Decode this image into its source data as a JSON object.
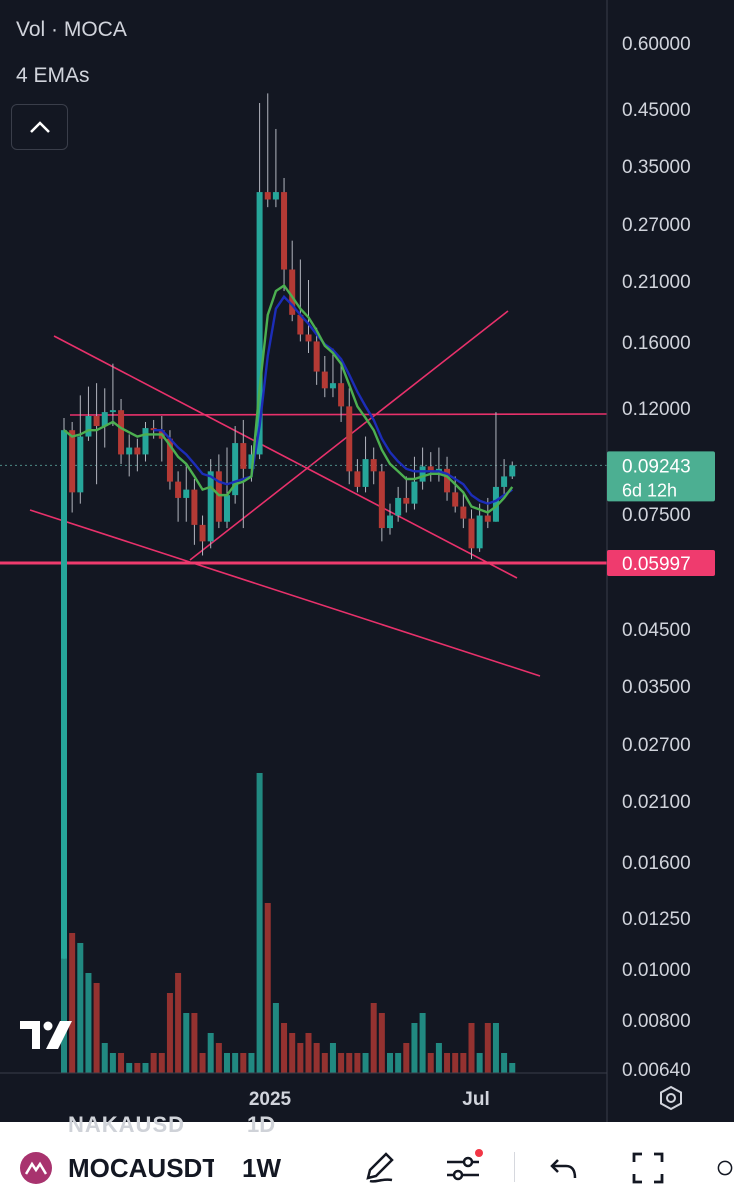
{
  "legend": {
    "volume_label": "Vol · MOCA",
    "ema_label": "4 EMAs"
  },
  "colors": {
    "up": "#26a69a",
    "down": "#b53a35",
    "ema_fast": "#4caf50",
    "ema_slow": "#1c2db8",
    "trendline": "#e8316b",
    "support": "#ef3b6e"
  },
  "chart_data": {
    "type": "candlestick",
    "price_axis": {
      "scale": "log",
      "range": [
        0.0062,
        0.64
      ],
      "ticks": [
        "0.60000",
        "0.45000",
        "0.35000",
        "0.27000",
        "0.21000",
        "0.16000",
        "0.12000",
        "0.07500",
        "0.04500",
        "0.03500",
        "0.02700",
        "0.02100",
        "0.01600",
        "0.01250",
        "0.01000",
        "0.00800",
        "0.00640"
      ]
    },
    "time_axis": {
      "labels": [
        "2025",
        "Jul"
      ]
    },
    "last_price": {
      "value": "0.09243",
      "countdown": "6d 12h"
    },
    "marked_price": {
      "value": "0.05997"
    },
    "candles": [
      [
        0.0104,
        0.108,
        0.114,
        0.0104
      ],
      [
        0.108,
        0.082,
        0.112,
        0.075
      ],
      [
        0.082,
        0.105,
        0.126,
        0.078
      ],
      [
        0.105,
        0.115,
        0.131,
        0.103
      ],
      [
        0.115,
        0.11,
        0.133,
        0.085
      ],
      [
        0.11,
        0.117,
        0.13,
        0.1
      ],
      [
        0.117,
        0.118,
        0.145,
        0.11
      ],
      [
        0.118,
        0.097,
        0.124,
        0.093
      ],
      [
        0.097,
        0.1,
        0.106,
        0.088
      ],
      [
        0.1,
        0.097,
        0.104,
        0.09
      ],
      [
        0.097,
        0.109,
        0.112,
        0.094
      ],
      [
        0.109,
        0.108,
        0.113,
        0.104
      ],
      [
        0.108,
        0.104,
        0.115,
        0.094
      ],
      [
        0.104,
        0.086,
        0.108,
        0.083
      ],
      [
        0.086,
        0.08,
        0.09,
        0.072
      ],
      [
        0.08,
        0.083,
        0.092,
        0.072
      ],
      [
        0.083,
        0.071,
        0.087,
        0.065
      ],
      [
        0.071,
        0.066,
        0.074,
        0.062
      ],
      [
        0.066,
        0.09,
        0.095,
        0.064
      ],
      [
        0.09,
        0.072,
        0.097,
        0.07
      ],
      [
        0.072,
        0.081,
        0.1,
        0.07
      ],
      [
        0.081,
        0.102,
        0.11,
        0.078
      ],
      [
        0.102,
        0.091,
        0.113,
        0.07
      ],
      [
        0.091,
        0.097,
        0.101,
        0.086
      ],
      [
        0.097,
        0.31,
        0.46,
        0.095
      ],
      [
        0.31,
        0.3,
        0.48,
        0.29
      ],
      [
        0.3,
        0.31,
        0.41,
        0.29
      ],
      [
        0.31,
        0.22,
        0.33,
        0.2
      ],
      [
        0.22,
        0.18,
        0.25,
        0.175
      ],
      [
        0.18,
        0.165,
        0.23,
        0.16
      ],
      [
        0.165,
        0.16,
        0.21,
        0.152
      ],
      [
        0.16,
        0.14,
        0.17,
        0.132
      ],
      [
        0.14,
        0.13,
        0.15,
        0.125
      ],
      [
        0.13,
        0.133,
        0.155,
        0.125
      ],
      [
        0.133,
        0.12,
        0.145,
        0.112
      ],
      [
        0.12,
        0.09,
        0.13,
        0.085
      ],
      [
        0.09,
        0.084,
        0.095,
        0.082
      ],
      [
        0.084,
        0.095,
        0.105,
        0.082
      ],
      [
        0.095,
        0.09,
        0.1,
        0.085
      ],
      [
        0.09,
        0.07,
        0.093,
        0.066
      ],
      [
        0.07,
        0.074,
        0.078,
        0.068
      ],
      [
        0.074,
        0.08,
        0.084,
        0.072
      ],
      [
        0.08,
        0.078,
        0.088,
        0.075
      ],
      [
        0.078,
        0.086,
        0.096,
        0.076
      ],
      [
        0.086,
        0.092,
        0.1,
        0.083
      ],
      [
        0.092,
        0.09,
        0.098,
        0.086
      ],
      [
        0.09,
        0.091,
        0.1,
        0.086
      ],
      [
        0.091,
        0.082,
        0.096,
        0.079
      ],
      [
        0.082,
        0.077,
        0.088,
        0.075
      ],
      [
        0.077,
        0.073,
        0.082,
        0.07
      ],
      [
        0.073,
        0.064,
        0.076,
        0.061
      ],
      [
        0.064,
        0.074,
        0.078,
        0.063
      ],
      [
        0.074,
        0.072,
        0.08,
        0.07
      ],
      [
        0.072,
        0.084,
        0.117,
        0.072
      ],
      [
        0.084,
        0.088,
        0.095,
        0.081
      ],
      [
        0.088,
        0.0924,
        0.094,
        0.087
      ]
    ],
    "ema_fast": [
      0.108,
      0.105,
      0.106,
      0.108,
      0.108,
      0.11,
      0.112,
      0.109,
      0.107,
      0.105,
      0.106,
      0.106,
      0.106,
      0.101,
      0.096,
      0.093,
      0.088,
      0.083,
      0.084,
      0.081,
      0.081,
      0.085,
      0.086,
      0.088,
      0.13,
      0.18,
      0.2,
      0.205,
      0.195,
      0.185,
      0.178,
      0.168,
      0.157,
      0.152,
      0.145,
      0.132,
      0.12,
      0.114,
      0.108,
      0.099,
      0.093,
      0.09,
      0.087,
      0.087,
      0.088,
      0.089,
      0.089,
      0.088,
      0.085,
      0.082,
      0.077,
      0.076,
      0.075,
      0.077,
      0.08,
      0.084
    ],
    "ema_slow": [
      null,
      null,
      null,
      null,
      null,
      null,
      null,
      null,
      null,
      null,
      null,
      0.108,
      0.108,
      0.104,
      0.1,
      0.097,
      0.093,
      0.089,
      0.088,
      0.086,
      0.085,
      0.086,
      0.087,
      0.088,
      0.11,
      0.15,
      0.185,
      0.195,
      0.188,
      0.18,
      0.173,
      0.165,
      0.158,
      0.154,
      0.148,
      0.138,
      0.128,
      0.12,
      0.113,
      0.104,
      0.098,
      0.094,
      0.091,
      0.09,
      0.09,
      0.09,
      0.09,
      0.089,
      0.087,
      0.085,
      0.081,
      0.079,
      0.078,
      0.079,
      0.081,
      0.083
    ],
    "volume": [
      0.16,
      0.14,
      0.13,
      0.1,
      0.09,
      0.03,
      0.02,
      0.02,
      0.01,
      0.01,
      0.01,
      0.02,
      0.02,
      0.08,
      0.1,
      0.06,
      0.06,
      0.02,
      0.04,
      0.03,
      0.02,
      0.02,
      0.02,
      0.02,
      0.3,
      0.17,
      0.07,
      0.05,
      0.04,
      0.03,
      0.04,
      0.03,
      0.02,
      0.03,
      0.02,
      0.02,
      0.02,
      0.02,
      0.07,
      0.06,
      0.02,
      0.02,
      0.03,
      0.05,
      0.06,
      0.02,
      0.03,
      0.02,
      0.02,
      0.02,
      0.05,
      0.02,
      0.05,
      0.05,
      0.02,
      0.01
    ]
  },
  "toolbar": {
    "ghost_symbol": "NAKAUSD",
    "ghost_interval": "1D",
    "symbol": "MOCAUSDT",
    "interval": "1W"
  }
}
